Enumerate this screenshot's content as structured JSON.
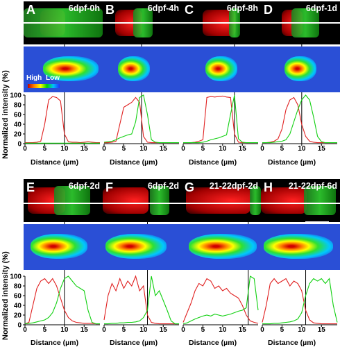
{
  "figure": {
    "shared_ylabel": "Normalized intensity (%)",
    "heatmap_legend": {
      "high": "High",
      "low": "Low"
    },
    "colors": {
      "red_series": "#e02020",
      "green_series": "#10d010",
      "axis": "#000000"
    }
  },
  "chart_data": [
    {
      "type": "line",
      "panel": "A",
      "title": "6dpf-0h",
      "xlabel": "Distance (µm)",
      "ylabel": "Normalized intensity (%)",
      "xlim": [
        0,
        19
      ],
      "ylim": [
        0,
        100
      ],
      "xticks": [
        0,
        5,
        10,
        15
      ],
      "yticks": [
        0,
        20,
        40,
        60,
        80,
        100
      ],
      "boundary_x": 10,
      "series": [
        {
          "color": "red",
          "x": [
            0,
            1,
            2,
            3,
            4,
            5,
            6,
            7,
            8,
            9,
            10,
            11,
            12,
            13,
            14,
            15,
            16,
            17,
            18,
            19
          ],
          "values": [
            2,
            2,
            2,
            3,
            5,
            40,
            90,
            97,
            95,
            88,
            20,
            4,
            3,
            3,
            2,
            3,
            4,
            3,
            2,
            2
          ]
        },
        {
          "color": "green",
          "x": [
            0,
            1,
            2,
            3,
            4,
            5,
            6,
            7,
            8,
            9,
            10,
            11,
            12,
            13,
            14,
            15,
            16,
            17,
            18,
            19
          ],
          "values": [
            1,
            1,
            1,
            1,
            1,
            1,
            1,
            1,
            1,
            1,
            1,
            1,
            1,
            1,
            1,
            1,
            1,
            1,
            1,
            1
          ]
        }
      ]
    },
    {
      "type": "line",
      "panel": "B",
      "title": "6dpf-4h",
      "xlabel": "Distance (µm)",
      "xlim": [
        0,
        19
      ],
      "ylim": [
        0,
        100
      ],
      "xticks": [
        0,
        5,
        10,
        15
      ],
      "yticks": [
        0,
        20,
        40,
        60,
        80,
        100
      ],
      "boundary_x": 9.5,
      "series": [
        {
          "color": "red",
          "x": [
            0,
            1,
            2,
            3,
            4,
            5,
            6,
            7,
            8,
            9,
            10,
            11,
            12,
            13,
            14,
            15,
            16,
            17,
            18,
            19
          ],
          "values": [
            2,
            2,
            3,
            5,
            40,
            75,
            80,
            85,
            95,
            85,
            15,
            3,
            2,
            2,
            2,
            2,
            2,
            2,
            2,
            2
          ]
        },
        {
          "color": "green",
          "x": [
            0,
            1,
            2,
            3,
            4,
            5,
            6,
            7,
            8,
            9,
            10,
            11,
            12,
            13,
            14,
            15,
            16,
            17,
            18,
            19
          ],
          "values": [
            3,
            4,
            5,
            8,
            12,
            15,
            18,
            20,
            45,
            95,
            100,
            60,
            8,
            3,
            2,
            2,
            2,
            2,
            2,
            2
          ]
        }
      ]
    },
    {
      "type": "line",
      "panel": "C",
      "title": "6dpf-8h",
      "xlabel": "Distance (µm)",
      "xlim": [
        0,
        19
      ],
      "ylim": [
        0,
        100
      ],
      "xticks": [
        0,
        5,
        10,
        15
      ],
      "yticks": [
        0,
        20,
        40,
        60,
        80,
        100
      ],
      "boundary_x": 13,
      "series": [
        {
          "color": "red",
          "x": [
            0,
            1,
            2,
            3,
            4,
            5,
            6,
            7,
            8,
            9,
            10,
            11,
            12,
            13,
            14,
            15,
            16,
            17,
            18,
            19
          ],
          "values": [
            2,
            2,
            2,
            3,
            5,
            8,
            95,
            97,
            96,
            97,
            98,
            96,
            95,
            20,
            3,
            2,
            2,
            2,
            2,
            2
          ]
        },
        {
          "color": "green",
          "x": [
            0,
            1,
            2,
            3,
            4,
            5,
            6,
            7,
            8,
            9,
            10,
            11,
            12,
            13,
            14,
            15,
            16,
            17,
            18,
            19
          ],
          "values": [
            2,
            2,
            2,
            2,
            2,
            3,
            5,
            8,
            10,
            12,
            15,
            18,
            60,
            100,
            10,
            3,
            2,
            2,
            2,
            2
          ]
        }
      ]
    },
    {
      "type": "line",
      "panel": "D",
      "title": "6dpf-1d",
      "xlabel": "Distance (µm)",
      "xlim": [
        0,
        19
      ],
      "ylim": [
        0,
        100
      ],
      "xticks": [
        0,
        5,
        10,
        15
      ],
      "yticks": [
        0,
        20,
        40,
        60,
        80,
        100
      ],
      "boundary_x": 10,
      "series": [
        {
          "color": "red",
          "x": [
            0,
            1,
            2,
            3,
            4,
            5,
            6,
            7,
            8,
            9,
            10,
            11,
            12,
            13,
            14,
            15,
            16,
            17,
            18,
            19
          ],
          "values": [
            2,
            2,
            3,
            5,
            10,
            30,
            70,
            90,
            95,
            80,
            40,
            15,
            5,
            3,
            2,
            2,
            2,
            2,
            2,
            2
          ]
        },
        {
          "color": "green",
          "x": [
            0,
            1,
            2,
            3,
            4,
            5,
            6,
            7,
            8,
            9,
            10,
            11,
            12,
            13,
            14,
            15,
            16,
            17,
            18,
            19
          ],
          "values": [
            2,
            2,
            2,
            3,
            4,
            5,
            8,
            20,
            45,
            70,
            90,
            100,
            90,
            55,
            15,
            4,
            2,
            2,
            2,
            2
          ]
        }
      ]
    },
    {
      "type": "line",
      "panel": "E",
      "title": "6dpf-2d",
      "xlabel": "Distance (µm)",
      "xlim": [
        0,
        19
      ],
      "ylim": [
        0,
        100
      ],
      "xticks": [
        0,
        5,
        10,
        15
      ],
      "yticks": [
        0,
        20,
        40,
        60,
        80,
        100
      ],
      "boundary_x": 10,
      "series": [
        {
          "color": "red",
          "x": [
            0,
            1,
            2,
            3,
            4,
            5,
            6,
            7,
            8,
            9,
            10,
            11,
            12,
            13,
            14,
            15,
            16,
            17,
            18,
            19
          ],
          "values": [
            2,
            5,
            40,
            75,
            90,
            95,
            85,
            95,
            80,
            55,
            30,
            15,
            8,
            5,
            4,
            3,
            3,
            3,
            2,
            2
          ]
        },
        {
          "color": "green",
          "x": [
            0,
            1,
            2,
            3,
            4,
            5,
            6,
            7,
            8,
            9,
            10,
            11,
            12,
            13,
            14,
            15,
            16,
            17,
            18,
            19
          ],
          "values": [
            2,
            3,
            4,
            6,
            8,
            10,
            15,
            25,
            45,
            75,
            95,
            100,
            90,
            80,
            75,
            70,
            30,
            5,
            2,
            2
          ]
        }
      ]
    },
    {
      "type": "line",
      "panel": "F",
      "title": "6dpf-2d",
      "xlabel": "Distance (µm)",
      "xlim": [
        0,
        19
      ],
      "ylim": [
        0,
        100
      ],
      "xticks": [
        0,
        5,
        10,
        15
      ],
      "yticks": [
        0,
        20,
        40,
        60,
        80,
        100
      ],
      "boundary_x": 11,
      "series": [
        {
          "color": "red",
          "x": [
            0,
            1,
            2,
            3,
            4,
            5,
            6,
            7,
            8,
            9,
            10,
            11,
            12,
            13,
            14,
            15,
            16,
            17,
            18,
            19
          ],
          "values": [
            10,
            60,
            85,
            70,
            95,
            75,
            90,
            80,
            100,
            70,
            80,
            20,
            5,
            3,
            2,
            2,
            2,
            2,
            2,
            2
          ]
        },
        {
          "color": "green",
          "x": [
            0,
            1,
            2,
            3,
            4,
            5,
            6,
            7,
            8,
            9,
            10,
            11,
            12,
            13,
            14,
            15,
            16,
            17,
            18,
            19
          ],
          "values": [
            2,
            2,
            3,
            3,
            4,
            4,
            5,
            5,
            6,
            8,
            15,
            30,
            100,
            60,
            70,
            50,
            30,
            8,
            2,
            2
          ]
        }
      ]
    },
    {
      "type": "line",
      "panel": "G",
      "title": "21-22dpf-2d",
      "xlabel": "Distance (µm)",
      "xlim": [
        0,
        19
      ],
      "ylim": [
        0,
        100
      ],
      "xticks": [
        0,
        5,
        10,
        15
      ],
      "yticks": [
        0,
        20,
        40,
        60,
        80,
        100
      ],
      "boundary_x": 16.5,
      "series": [
        {
          "color": "red",
          "x": [
            0,
            1,
            2,
            3,
            4,
            5,
            6,
            7,
            8,
            9,
            10,
            11,
            12,
            13,
            14,
            15,
            16,
            17,
            18,
            19
          ],
          "values": [
            5,
            25,
            45,
            70,
            85,
            80,
            95,
            90,
            75,
            80,
            70,
            75,
            65,
            60,
            55,
            40,
            20,
            8,
            5,
            3
          ]
        },
        {
          "color": "green",
          "x": [
            0,
            1,
            2,
            3,
            4,
            5,
            6,
            7,
            8,
            9,
            10,
            11,
            12,
            13,
            14,
            15,
            16,
            17,
            18,
            19
          ],
          "values": [
            2,
            4,
            8,
            12,
            15,
            18,
            20,
            18,
            22,
            20,
            18,
            20,
            22,
            25,
            28,
            30,
            35,
            100,
            95,
            30
          ]
        }
      ]
    },
    {
      "type": "line",
      "panel": "H",
      "title": "21-22dpf-6d",
      "xlabel": "Distance (µm)",
      "xlim": [
        0,
        19
      ],
      "ylim": [
        0,
        100
      ],
      "xticks": [
        0,
        5,
        10,
        15
      ],
      "yticks": [
        0,
        20,
        40,
        60,
        80,
        100
      ],
      "boundary_x": 11,
      "series": [
        {
          "color": "red",
          "x": [
            0,
            1,
            2,
            3,
            4,
            5,
            6,
            7,
            8,
            9,
            10,
            11,
            12,
            13,
            14,
            15,
            16,
            17,
            18,
            19
          ],
          "values": [
            5,
            40,
            85,
            95,
            85,
            90,
            95,
            80,
            90,
            85,
            70,
            30,
            10,
            4,
            3,
            2,
            2,
            2,
            2,
            2
          ]
        },
        {
          "color": "green",
          "x": [
            0,
            1,
            2,
            3,
            4,
            5,
            6,
            7,
            8,
            9,
            10,
            11,
            12,
            13,
            14,
            15,
            16,
            17,
            18,
            19
          ],
          "values": [
            2,
            2,
            2,
            3,
            3,
            4,
            5,
            6,
            8,
            12,
            25,
            60,
            85,
            95,
            90,
            95,
            85,
            95,
            40,
            5
          ]
        }
      ]
    }
  ]
}
